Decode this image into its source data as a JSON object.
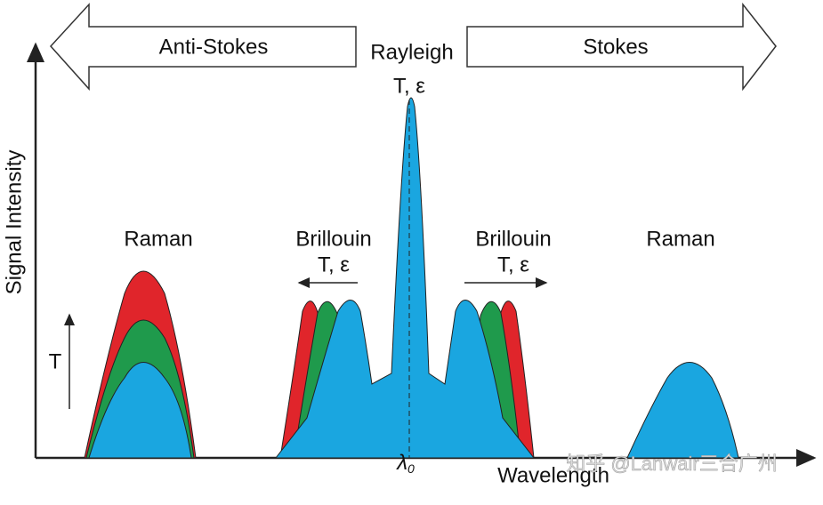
{
  "arrows": {
    "left": "Anti-Stokes",
    "right": "Stokes"
  },
  "rayleigh": {
    "label": "Rayleigh",
    "sensitivity": "T, ε"
  },
  "brillouin_left": {
    "label": "Brillouin",
    "sensitivity": "T, ε"
  },
  "brillouin_right": {
    "label": "Brillouin",
    "sensitivity": "T, ε"
  },
  "raman_left": {
    "label": "Raman"
  },
  "raman_right": {
    "label": "Raman"
  },
  "temperature_arrow": "T",
  "y_axis": "Signal Intensity",
  "x_axis": "Wavelength",
  "center": {
    "symbol": "λ",
    "subscript": "0"
  },
  "watermark": "知乎 @Lanwair三合广州"
}
